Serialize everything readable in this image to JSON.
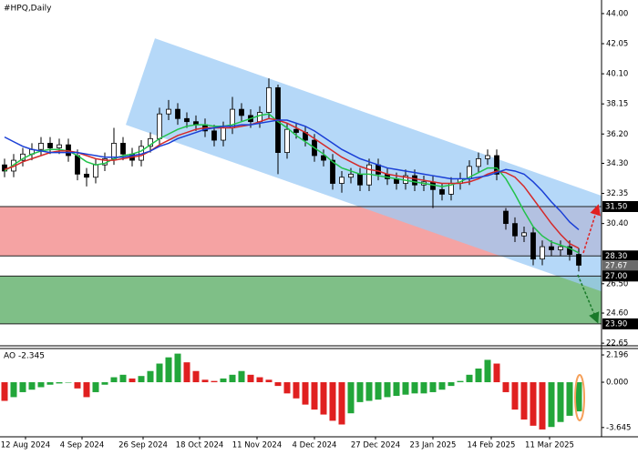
{
  "chart_data": [
    {
      "type": "candlestick",
      "title": "#HPQ,Daily",
      "xlim": [
        -0.5,
        65.5
      ],
      "xticks": [
        {
          "value": 2.3,
          "label": "12 Aug 2024"
        },
        {
          "value": 8.5,
          "label": "4 Sep 2024"
        },
        {
          "value": 15.2,
          "label": "26 Sep 2024"
        },
        {
          "value": 21.4,
          "label": "18 Oct 2024"
        },
        {
          "value": 27.7,
          "label": "11 Nov 2024"
        },
        {
          "value": 34,
          "label": "4 Dec 2024"
        },
        {
          "value": 40.7,
          "label": "27 Dec 2024"
        },
        {
          "value": 47,
          "label": "23 Jan 2025"
        },
        {
          "value": 53.4,
          "label": "14 Feb 2025"
        },
        {
          "value": 59.8,
          "label": "11 Mar 2025"
        }
      ],
      "ylim": [
        22.48,
        44.88
      ],
      "yticks": [
        {
          "value": 44,
          "label": "44.00"
        },
        {
          "value": 42.05,
          "label": "42.05"
        },
        {
          "value": 40.1,
          "label": "40.10"
        },
        {
          "value": 38.15,
          "label": "38.15"
        },
        {
          "value": 36.2,
          "label": "36.20"
        },
        {
          "value": 34.3,
          "label": "34.30"
        },
        {
          "value": 32.35,
          "label": "32.35"
        },
        {
          "value": 30.4,
          "label": "30.40"
        },
        {
          "value": 26.5,
          "label": "26.50"
        },
        {
          "value": 24.6,
          "label": "24.60"
        },
        {
          "value": 22.65,
          "label": "22.65"
        }
      ],
      "open": [
        34.2,
        33.8,
        34.5,
        34.9,
        35.2,
        35.6,
        35.3,
        35.5,
        34.8,
        33.6,
        33.4,
        34.2,
        34.6,
        35.6,
        34.9,
        34.5,
        35.4,
        35.9,
        37.5,
        37.8,
        37.2,
        37.0,
        36.8,
        36.4,
        35.8,
        36.6,
        37.8,
        37.4,
        37.0,
        37.6,
        39.2,
        35.0,
        36.5,
        36.3,
        35.8,
        34.8,
        34.5,
        33.0,
        33.4,
        33.6,
        32.9,
        34.2,
        33.6,
        33.3,
        33.0,
        33.5,
        32.9,
        33.1,
        32.6,
        32.3,
        33.0,
        33.3,
        34.1,
        34.6,
        34.8,
        31.2,
        30.4,
        29.6,
        29.8,
        28.1,
        28.9,
        28.7,
        28.9,
        28.4
      ],
      "high": [
        34.6,
        34.9,
        35.3,
        35.6,
        36.0,
        36.0,
        35.9,
        35.9,
        35.2,
        34.0,
        34.6,
        35.0,
        36.6,
        36.0,
        35.3,
        35.8,
        36.3,
        37.9,
        38.4,
        38.2,
        37.6,
        37.4,
        37.2,
        36.8,
        37.0,
        38.6,
        38.2,
        37.8,
        38.0,
        39.8,
        39.4,
        36.9,
        36.9,
        36.7,
        36.2,
        35.2,
        34.9,
        33.8,
        34.0,
        34.0,
        34.6,
        34.6,
        34.0,
        33.7,
        33.9,
        33.9,
        33.5,
        33.5,
        33.0,
        33.4,
        33.7,
        34.5,
        35.0,
        35.2,
        35.2,
        31.4,
        30.8,
        30.2,
        30.2,
        29.3,
        29.3,
        29.3,
        29.3,
        28.8
      ],
      "low": [
        33.4,
        33.4,
        34.1,
        34.5,
        34.8,
        34.9,
        34.9,
        34.4,
        33.2,
        32.8,
        33.0,
        33.8,
        34.2,
        34.5,
        34.1,
        34.1,
        35.0,
        35.5,
        37.1,
        36.8,
        36.6,
        36.4,
        36.0,
        35.4,
        35.4,
        36.2,
        37.0,
        36.6,
        36.6,
        37.2,
        33.6,
        34.6,
        35.9,
        35.4,
        34.4,
        34.1,
        32.6,
        32.4,
        33.0,
        32.5,
        32.5,
        33.2,
        32.9,
        32.6,
        32.6,
        32.5,
        32.5,
        31.4,
        31.9,
        31.9,
        32.6,
        32.9,
        33.7,
        34.2,
        33.2,
        30.0,
        29.2,
        29.2,
        27.7,
        27.7,
        28.3,
        28.3,
        28.0,
        27.3
      ],
      "close": [
        33.8,
        34.5,
        34.9,
        35.2,
        35.6,
        35.3,
        35.5,
        34.8,
        33.6,
        33.4,
        34.2,
        34.6,
        35.6,
        34.9,
        34.5,
        35.4,
        35.9,
        37.5,
        37.8,
        37.2,
        37.0,
        36.8,
        36.4,
        35.8,
        36.6,
        37.8,
        37.4,
        37.0,
        37.6,
        39.2,
        35.0,
        36.5,
        36.3,
        35.8,
        34.8,
        34.5,
        33.0,
        33.4,
        33.6,
        32.9,
        34.2,
        33.6,
        33.3,
        33.0,
        33.5,
        32.9,
        33.1,
        32.6,
        32.3,
        33.0,
        33.3,
        34.1,
        34.6,
        34.8,
        33.6,
        30.4,
        29.6,
        29.8,
        28.1,
        28.9,
        28.7,
        28.9,
        28.4,
        27.7
      ],
      "lines": [
        {
          "color": "#22c24a",
          "values": [
            33.8,
            34.2,
            34.6,
            34.9,
            35.1,
            35.2,
            35.2,
            35.1,
            34.8,
            34.4,
            34.2,
            34.3,
            34.6,
            34.8,
            34.9,
            35.1,
            35.5,
            35.9,
            36.2,
            36.5,
            36.7,
            36.8,
            36.8,
            36.7,
            36.7,
            36.8,
            37.0,
            37.2,
            37.4,
            37.5,
            37.0,
            36.6,
            36.1,
            35.7,
            35.3,
            34.9,
            34.4,
            34.0,
            33.8,
            33.6,
            33.6,
            33.5,
            33.4,
            33.3,
            33.2,
            33.1,
            33.0,
            32.9,
            32.8,
            32.9,
            33.1,
            33.4,
            33.7,
            34.0,
            34.0,
            33.3,
            32.3,
            31.2,
            30.2,
            29.6,
            29.2,
            29.0,
            28.8,
            28.5
          ]
        },
        {
          "color": "#d42a2a",
          "values": [
            33.9,
            34.1,
            34.4,
            34.6,
            34.8,
            35.0,
            35.1,
            35.1,
            35.0,
            34.8,
            34.6,
            34.5,
            34.5,
            34.6,
            34.7,
            34.8,
            35.1,
            35.5,
            35.8,
            36.1,
            36.3,
            36.5,
            36.6,
            36.6,
            36.6,
            36.6,
            36.7,
            36.8,
            37.0,
            37.2,
            37.1,
            36.9,
            36.6,
            36.3,
            35.9,
            35.5,
            35.1,
            34.7,
            34.4,
            34.1,
            33.9,
            33.8,
            33.6,
            33.5,
            33.4,
            33.3,
            33.2,
            33.1,
            33.0,
            33.0,
            33.0,
            33.1,
            33.3,
            33.6,
            33.8,
            33.7,
            33.4,
            32.8,
            32.0,
            31.2,
            30.4,
            29.7,
            29.1,
            28.8
          ]
        },
        {
          "color": "#1a3fd6",
          "values": [
            36.0,
            35.7,
            35.4,
            35.2,
            35.1,
            35.0,
            35.0,
            35.0,
            35.0,
            34.9,
            34.8,
            34.7,
            34.7,
            34.7,
            34.8,
            34.9,
            35.1,
            35.4,
            35.6,
            35.9,
            36.1,
            36.3,
            36.5,
            36.6,
            36.7,
            36.7,
            36.8,
            36.8,
            36.9,
            37.0,
            37.1,
            37.1,
            36.9,
            36.7,
            36.4,
            36.0,
            35.6,
            35.2,
            34.9,
            34.6,
            34.4,
            34.2,
            34.0,
            33.9,
            33.8,
            33.7,
            33.6,
            33.5,
            33.4,
            33.3,
            33.3,
            33.3,
            33.4,
            33.5,
            33.7,
            33.9,
            33.8,
            33.6,
            33.1,
            32.5,
            31.8,
            31.2,
            30.5,
            30.0
          ]
        }
      ],
      "channel": {
        "color": "#9ccbf5",
        "upper": [
          [
            16.5,
            42.4
          ],
          [
            65.5,
            32.2
          ]
        ],
        "lower": [
          [
            13.3,
            36.8
          ],
          [
            65.5,
            26.0
          ]
        ]
      },
      "zones": [
        {
          "from": 31.5,
          "to": 28.3,
          "color": "#f5a3a3"
        },
        {
          "from": 27.0,
          "to": 23.9,
          "color": "#7fbf87"
        }
      ],
      "levels": [
        {
          "value": 31.5,
          "label": "31.50",
          "color": "#000000"
        },
        {
          "value": 28.3,
          "label": "28.30",
          "color": "#000000"
        },
        {
          "value": 27.67,
          "label": "27.67",
          "color": "#6b6b6b"
        },
        {
          "value": 27.0,
          "label": "27.00",
          "color": "#000000"
        },
        {
          "value": 23.9,
          "label": "23.90",
          "color": "#000000"
        }
      ]
    },
    {
      "type": "bar",
      "title": "AO -2.345",
      "ylim": [
        -4.39,
        2.71
      ],
      "yticks": [
        2.196,
        {
          "value": 0,
          "label": "0.000"
        },
        -3.645
      ],
      "up_color": "#22a63a",
      "down_color": "#e02020",
      "values": [
        -1.5,
        -1.2,
        -0.8,
        -0.6,
        -0.4,
        -0.2,
        -0.1,
        0.0,
        -0.5,
        -1.2,
        -0.8,
        -0.2,
        0.4,
        0.6,
        0.3,
        0.5,
        0.9,
        1.5,
        2.0,
        2.3,
        1.6,
        0.9,
        0.2,
        0.1,
        0.3,
        0.6,
        0.9,
        0.6,
        0.4,
        0.2,
        -0.3,
        -0.9,
        -1.3,
        -1.8,
        -2.2,
        -2.6,
        -3.1,
        -3.4,
        -2.5,
        -1.6,
        -1.5,
        -1.4,
        -1.2,
        -1.1,
        -1.0,
        -0.9,
        -0.9,
        -0.8,
        -0.6,
        -0.3,
        0.1,
        0.6,
        1.1,
        1.8,
        1.5,
        -0.8,
        -2.2,
        -3.0,
        -3.5,
        -3.8,
        -3.6,
        -3.2,
        -2.7,
        -2.345
      ]
    }
  ]
}
